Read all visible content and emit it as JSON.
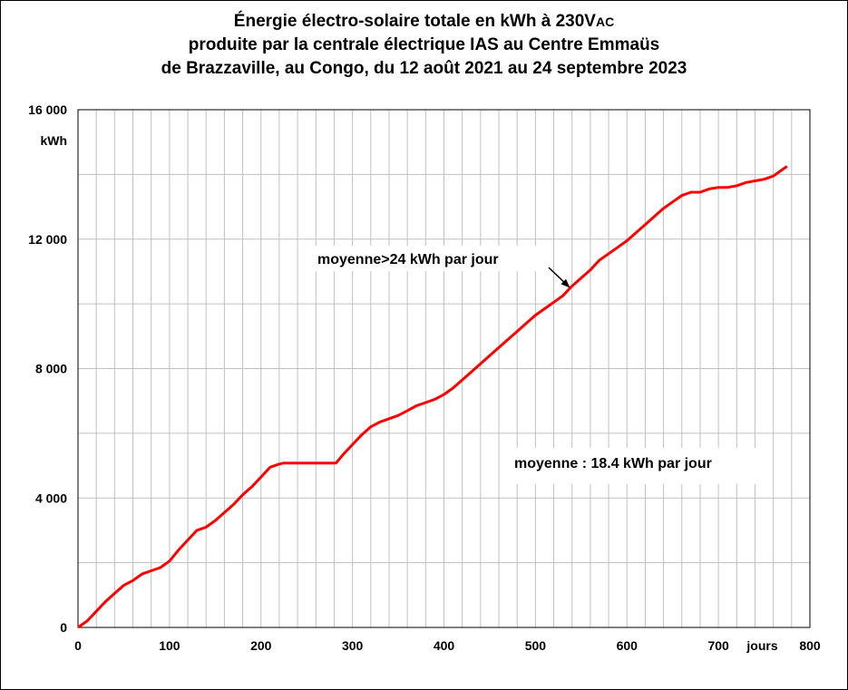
{
  "chart_data": {
    "type": "line",
    "title_line1_main": "Énergie électro-solaire totale en kWh à 230V",
    "title_line1_sub": "AC",
    "title_line2": "produite par la centrale électrique IAS au Centre Emmaüs",
    "title_line3": "de Brazzaville, au Congo, du 12 août 2021 au 24 septembre 2023",
    "ylabel": "kWh",
    "xlabel": "jours",
    "xlim": [
      0,
      800
    ],
    "ylim": [
      0,
      16000
    ],
    "x_ticks": [
      0,
      100,
      200,
      300,
      400,
      500,
      600,
      700,
      800
    ],
    "x_tick_labels": [
      "0",
      "100",
      "200",
      "300",
      "400",
      "500",
      "600",
      "700",
      "800"
    ],
    "y_ticks": [
      0,
      4000,
      8000,
      12000,
      16000
    ],
    "y_tick_labels": [
      "0",
      "4 000",
      "8 000",
      "12 000",
      "16 000"
    ],
    "grid": true,
    "colors": {
      "line": "#ff0000",
      "grid": "#c0c0c0"
    },
    "annotations": [
      {
        "text": "moyenne>24 kWh par jour",
        "arrow_to": [
          540,
          10600
        ]
      },
      {
        "text": "moyenne : 18.4 kWh par jour"
      }
    ],
    "series": [
      {
        "x": [
          0,
          10,
          20,
          30,
          40,
          50,
          60,
          70,
          80,
          90,
          100,
          110,
          120,
          130,
          140,
          150,
          160,
          170,
          180,
          190,
          200,
          210,
          220,
          225,
          230,
          250,
          270,
          282,
          290,
          300,
          310,
          320,
          330,
          340,
          350,
          360,
          370,
          380,
          390,
          400,
          410,
          420,
          430,
          440,
          450,
          460,
          470,
          480,
          490,
          500,
          510,
          520,
          530,
          540,
          550,
          560,
          570,
          580,
          590,
          600,
          610,
          620,
          630,
          640,
          650,
          660,
          670,
          680,
          690,
          700,
          710,
          720,
          730,
          740,
          750,
          760,
          770,
          775
        ],
        "y": [
          0,
          200,
          500,
          800,
          1050,
          1300,
          1450,
          1650,
          1750,
          1850,
          2050,
          2400,
          2700,
          3000,
          3100,
          3300,
          3550,
          3800,
          4100,
          4350,
          4650,
          4950,
          5050,
          5080,
          5080,
          5080,
          5080,
          5080,
          5350,
          5650,
          5950,
          6200,
          6350,
          6450,
          6550,
          6700,
          6850,
          6950,
          7050,
          7200,
          7400,
          7650,
          7900,
          8150,
          8400,
          8650,
          8900,
          9150,
          9400,
          9650,
          9850,
          10050,
          10250,
          10550,
          10800,
          11050,
          11350,
          11550,
          11750,
          11950,
          12200,
          12450,
          12700,
          12950,
          13150,
          13350,
          13450,
          13450,
          13550,
          13600,
          13600,
          13650,
          13750,
          13800,
          13850,
          13950,
          14150,
          14250
        ]
      }
    ]
  }
}
